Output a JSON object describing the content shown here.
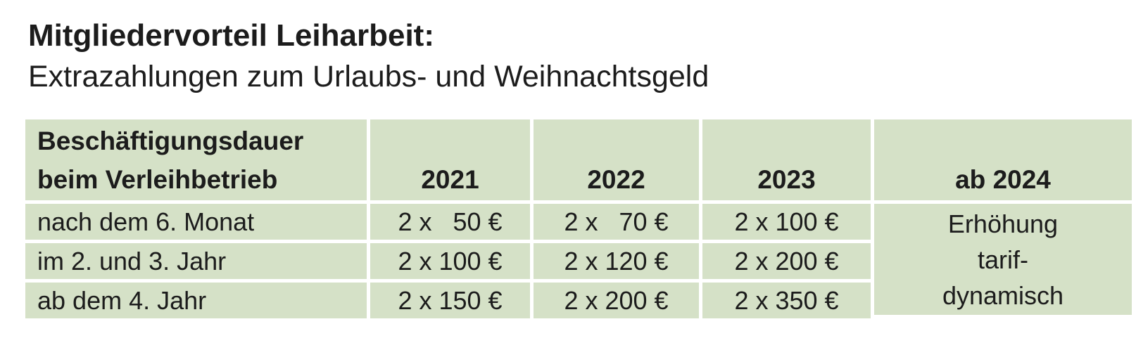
{
  "title": "Mitgliedervorteil Leiharbeit:",
  "subtitle": "Extrazahlungen zum Urlaubs- und Weihnachtsgeld",
  "table": {
    "header": {
      "duration_line1": "Beschäftigungsdauer",
      "duration_line2": "beim Verleihbetrieb",
      "col_2021": "2021",
      "col_2022": "2022",
      "col_2023": "2023",
      "col_2024": "ab 2024"
    },
    "rows": [
      {
        "duration": "nach dem 6. Monat",
        "y2021": "2 x   50 €",
        "y2022": "2 x   70 €",
        "y2023": "2 x 100 €"
      },
      {
        "duration": "im 2. und 3. Jahr",
        "y2021": "2 x 100 €",
        "y2022": "2 x 120 €",
        "y2023": "2 x 200 €"
      },
      {
        "duration": "ab dem 4. Jahr",
        "y2021": "2 x 150 €",
        "y2022": "2 x 200 €",
        "y2023": "2 x 350 €"
      }
    ],
    "note": {
      "line1": "Erhöhung",
      "line2": "tarif-",
      "line3": "dynamisch"
    }
  },
  "colors": {
    "cell_background": "#d5e1c7",
    "text": "#1c1c1c",
    "separator": "#ffffff"
  }
}
